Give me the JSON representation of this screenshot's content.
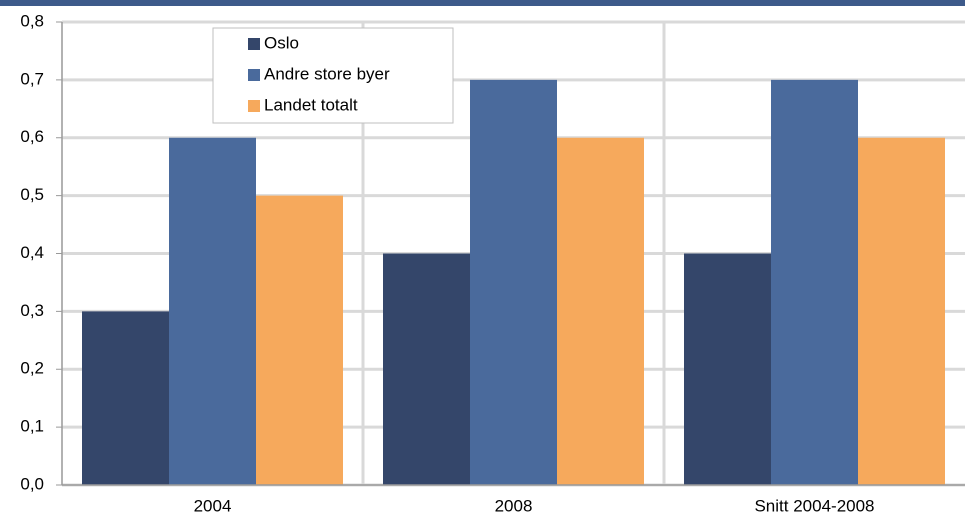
{
  "chart_data": {
    "type": "bar",
    "categories": [
      "2004",
      "2008",
      "Snitt 2004-2008"
    ],
    "series": [
      {
        "name": "Oslo",
        "color": "#34466a",
        "values": [
          0.3,
          0.4,
          0.4
        ]
      },
      {
        "name": "Andre store byer",
        "color": "#4a6a9c",
        "values": [
          0.6,
          0.7,
          0.7
        ]
      },
      {
        "name": "Landet totalt",
        "color": "#f6a95c",
        "values": [
          0.5,
          0.6,
          0.6
        ]
      }
    ],
    "ylim": [
      0,
      0.8
    ],
    "yticks": [
      {
        "value": 0,
        "label": "0,0"
      },
      {
        "value": 0.1,
        "label": "0,1"
      },
      {
        "value": 0.2,
        "label": "0,2"
      },
      {
        "value": 0.3,
        "label": "0,3"
      },
      {
        "value": 0.4,
        "label": "0,4"
      },
      {
        "value": 0.5,
        "label": "0,5"
      },
      {
        "value": 0.6,
        "label": "0,6"
      },
      {
        "value": 0.7,
        "label": "0,7"
      },
      {
        "value": 0.8,
        "label": "0,8"
      }
    ],
    "grid": true,
    "legend": "top-left"
  }
}
